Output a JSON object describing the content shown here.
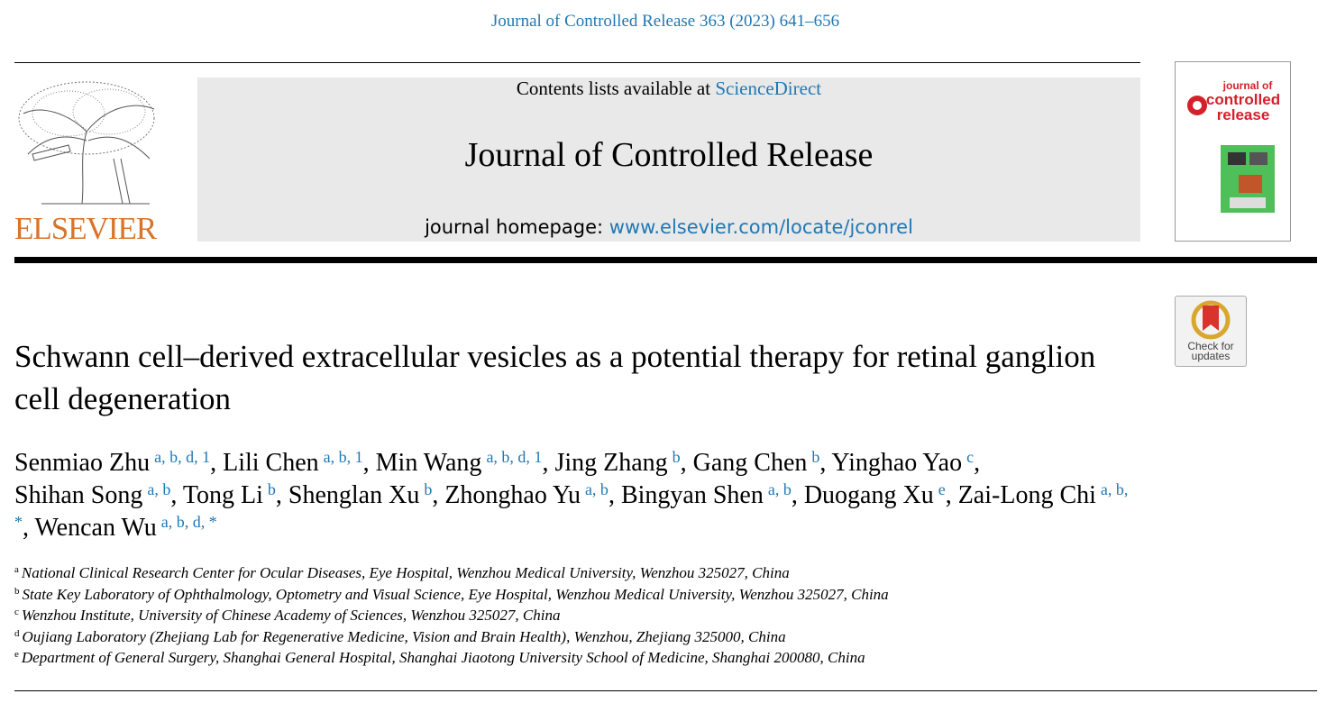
{
  "header": {
    "citation": "Journal of Controlled Release 363 (2023) 641–656",
    "contents_label": "Contents lists available at",
    "contents_link": "ScienceDirect",
    "journal_name": "Journal of Controlled Release",
    "homepage_label": "journal homepage:",
    "homepage_url": "www.elsevier.com/locate/jconrel",
    "publisher": "ELSEVIER",
    "cover": {
      "line1": "journal of",
      "line2": "controlled",
      "line3": "release"
    },
    "check_updates": {
      "line1": "Check for",
      "line2": "updates"
    }
  },
  "article": {
    "title": "Schwann cell–derived extracellular vesicles as a potential therapy for retinal ganglion cell degeneration",
    "authors": [
      {
        "name": "Senmiao Zhu",
        "sup": "a, b, d, 1",
        "sep": ","
      },
      {
        "name": "Lili Chen",
        "sup": "a, b, 1",
        "sep": ","
      },
      {
        "name": "Min Wang",
        "sup": "a, b, d, 1",
        "sep": ","
      },
      {
        "name": "Jing Zhang",
        "sup": "b",
        "sep": ","
      },
      {
        "name": "Gang Chen",
        "sup": "b",
        "sep": ","
      },
      {
        "name": "Yinghao Yao",
        "sup": "c",
        "sep": ","
      },
      {
        "name": "Shihan Song",
        "sup": "a, b",
        "sep": ","
      },
      {
        "name": "Tong Li",
        "sup": "b",
        "sep": ","
      },
      {
        "name": "Shenglan Xu",
        "sup": "b",
        "sep": ","
      },
      {
        "name": "Zhonghao Yu",
        "sup": "a, b",
        "sep": ","
      },
      {
        "name": "Bingyan Shen",
        "sup": "a, b",
        "sep": ","
      },
      {
        "name": "Duogang Xu",
        "sup": "e",
        "sep": ","
      },
      {
        "name": "Zai-Long Chi",
        "sup": "a, b, *",
        "sep": ","
      },
      {
        "name": "Wencan Wu",
        "sup": "a, b, d, *"
      }
    ],
    "affiliations": [
      {
        "key": "a",
        "text": "National Clinical Research Center for Ocular Diseases, Eye Hospital, Wenzhou Medical University, Wenzhou 325027, China"
      },
      {
        "key": "b",
        "text": "State Key Laboratory of Ophthalmology, Optometry and Visual Science, Eye Hospital, Wenzhou Medical University, Wenzhou 325027, China"
      },
      {
        "key": "c",
        "text": "Wenzhou Institute, University of Chinese Academy of Sciences, Wenzhou 325027, China"
      },
      {
        "key": "d",
        "text": "Oujiang Laboratory (Zhejiang Lab for Regenerative Medicine, Vision and Brain Health), Wenzhou, Zhejiang 325000, China"
      },
      {
        "key": "e",
        "text": "Department of General Surgery, Shanghai General Hospital, Shanghai Jiaotong University School of Medicine, Shanghai 200080, China"
      }
    ]
  }
}
